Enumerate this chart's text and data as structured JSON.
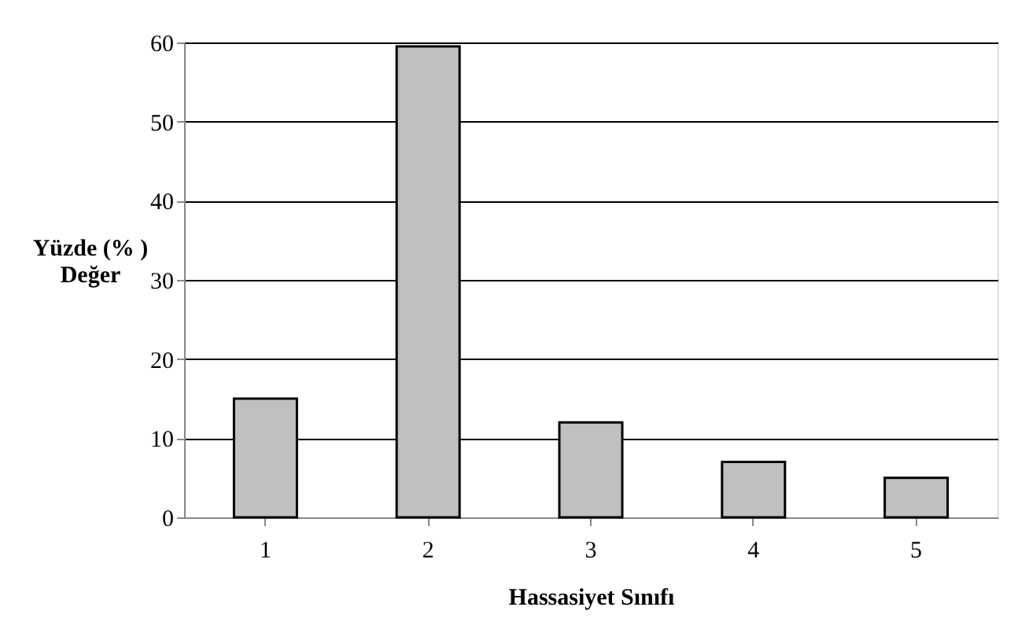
{
  "chart_data": {
    "type": "bar",
    "xlabel": "Hassasiyet Sınıfı",
    "ylabel": "Yüzde (% )\nDeğer",
    "categories": [
      "1",
      "2",
      "3",
      "4",
      "5"
    ],
    "values": [
      15,
      59.5,
      12,
      7,
      5
    ],
    "color": "#c0c0c0",
    "ylim": [
      0,
      60
    ],
    "yticks": [
      0,
      10,
      20,
      30,
      40,
      50,
      60
    ],
    "grid": "y"
  }
}
